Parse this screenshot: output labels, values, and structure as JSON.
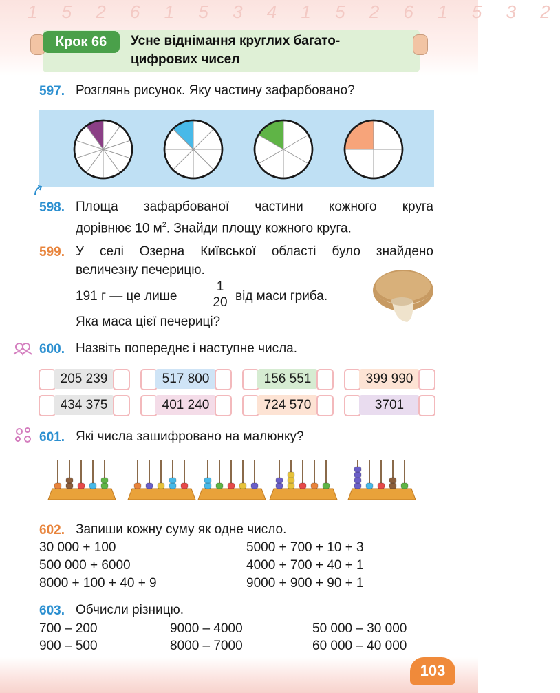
{
  "header": {
    "decorative_digits": "1 5 2 6 1 5 3 4 1 5 2 6 1 5 3 2",
    "step_label": "Крок 66",
    "title_line1": "Усне віднімання круглих багато-",
    "title_line2": "цифрових чисел"
  },
  "colors": {
    "blue_number": "#2b8fd0",
    "orange_number": "#e8843c",
    "step_green": "#4aa04a",
    "header_bg": "#dff0d6"
  },
  "tasks": {
    "t597": {
      "number": "597.",
      "text": "Розглянь рисунок. Яку частину зафарбовано?",
      "circles": [
        {
          "sectors": 10,
          "shaded": 1,
          "color": "#8b3f86"
        },
        {
          "sectors": 8,
          "shaded": 1,
          "color": "#48b9e8"
        },
        {
          "sectors": 6,
          "shaded": 1,
          "color": "#5fb446"
        },
        {
          "sectors": 4,
          "shaded": 1,
          "color": "#f7a47a"
        }
      ]
    },
    "t598": {
      "number": "598.",
      "line1": "Площа зафарбованої частини кожного круга",
      "line2_pre": "дорівнює 10 м",
      "line2_sup": "2",
      "line2_post": ". Знайди площу кожного круга."
    },
    "t599": {
      "number": "599.",
      "line1": "У селі Озерна Київської області було знайдено",
      "line2": "величезну печерицю.",
      "line3_pre": "191 г — це лише",
      "frac_num": "1",
      "frac_den": "20",
      "line3_post": "від маси гриба.",
      "line4": "Яка маса цієї печериці?"
    },
    "t600": {
      "number": "600.",
      "text": "Назвіть попереднє і наступне числа.",
      "values": [
        {
          "value": "205 239",
          "color": "#e6e6e6"
        },
        {
          "value": "517 800",
          "color": "#cfe4f6"
        },
        {
          "value": "156 551",
          "color": "#d6ecd2"
        },
        {
          "value": "399 990",
          "color": "#fde3d4"
        },
        {
          "value": "434 375",
          "color": "#e6e6e6"
        },
        {
          "value": "401 240",
          "color": "#f4dce8"
        },
        {
          "value": "724 570",
          "color": "#fde3d4"
        },
        {
          "value": "3701",
          "color": "#e9dcef"
        }
      ]
    },
    "t601": {
      "number": "601.",
      "text": "Які числа зашифровано на малюнку?"
    },
    "t602": {
      "number": "602.",
      "text": "Запиши кожну суму як одне число.",
      "left": [
        "30 000 + 100",
        "500 000 + 6000",
        "8000 + 100 + 40 + 9"
      ],
      "right": [
        "5000 + 700 + 10 + 3",
        "4000 + 700 + 40 + 1",
        "9000 + 900 + 90 + 1"
      ]
    },
    "t603": {
      "number": "603.",
      "text": "Обчисли різницю.",
      "col1": [
        "700 – 200",
        "900 – 500"
      ],
      "col2": [
        "9000 – 4000",
        "8000 – 7000"
      ],
      "col3": [
        "50 000 – 30 000",
        "60 000 – 40 000"
      ]
    }
  },
  "page_number": "103"
}
